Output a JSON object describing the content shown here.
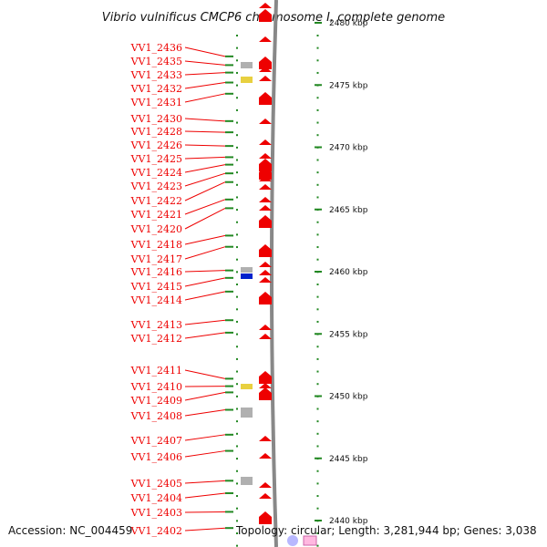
{
  "title": "Vibrio vulnificus CMCP6 chromosome I, complete genome",
  "accession_text": "Accession: NC_004459",
  "summary_text": "Topology: circular; Length: 3,281,944 bp; Genes: 3,038",
  "colors": {
    "gene_label": "#ee0000",
    "forward_gene": "#ee0000",
    "other_gene_gray": "#b0b0b0",
    "rna_yellow": "#e8d040",
    "blue_feature": "#0022cc",
    "tick_green": "#228822",
    "backbone": "#888888",
    "legend_blue": "#b8b8ff",
    "legend_pink": "#ffb8e0"
  },
  "scale": {
    "unit": "kbp",
    "ticks": [
      {
        "kbp": 2480,
        "label": "2480 kbp"
      },
      {
        "kbp": 2475,
        "label": "2475 kbp"
      },
      {
        "kbp": 2470,
        "label": "2470 kbp"
      },
      {
        "kbp": 2465,
        "label": "2465 kbp"
      },
      {
        "kbp": 2460,
        "label": "2460 kbp"
      },
      {
        "kbp": 2455,
        "label": "2455 kbp"
      },
      {
        "kbp": 2450,
        "label": "2450 kbp"
      },
      {
        "kbp": 2445,
        "label": "2445 kbp"
      },
      {
        "kbp": 2440,
        "label": "2440 kbp"
      }
    ]
  },
  "genes": [
    {
      "label": "VV1_2436",
      "kbp": 2477.3
    },
    {
      "label": "VV1_2435",
      "kbp": 2476.6
    },
    {
      "label": "VV1_2433",
      "kbp": 2476.0
    },
    {
      "label": "VV1_2432",
      "kbp": 2475.2
    },
    {
      "label": "VV1_2431",
      "kbp": 2474.3
    },
    {
      "label": "VV1_2430",
      "kbp": 2472.1
    },
    {
      "label": "VV1_2428",
      "kbp": 2471.2
    },
    {
      "label": "VV1_2426",
      "kbp": 2470.1
    },
    {
      "label": "VV1_2425",
      "kbp": 2469.2
    },
    {
      "label": "VV1_2424",
      "kbp": 2468.6
    },
    {
      "label": "VV1_2423",
      "kbp": 2467.9
    },
    {
      "label": "VV1_2422",
      "kbp": 2467.2
    },
    {
      "label": "VV1_2421",
      "kbp": 2465.8
    },
    {
      "label": "VV1_2420",
      "kbp": 2465.1
    },
    {
      "label": "VV1_2418",
      "kbp": 2462.9
    },
    {
      "label": "VV1_2417",
      "kbp": 2462.0
    },
    {
      "label": "VV1_2416",
      "kbp": 2460.1
    },
    {
      "label": "VV1_2415",
      "kbp": 2459.5
    },
    {
      "label": "VV1_2414",
      "kbp": 2458.4
    },
    {
      "label": "VV1_2413",
      "kbp": 2456.1
    },
    {
      "label": "VV1_2412",
      "kbp": 2455.1
    },
    {
      "label": "VV1_2411",
      "kbp": 2451.4
    },
    {
      "label": "VV1_2410",
      "kbp": 2450.8
    },
    {
      "label": "VV1_2409",
      "kbp": 2450.3
    },
    {
      "label": "VV1_2408",
      "kbp": 2448.9
    },
    {
      "label": "VV1_2407",
      "kbp": 2446.9
    },
    {
      "label": "VV1_2406",
      "kbp": 2445.6
    },
    {
      "label": "VV1_2405",
      "kbp": 2443.2
    },
    {
      "label": "VV1_2404",
      "kbp": 2442.2
    },
    {
      "label": "VV1_2403",
      "kbp": 2440.7
    },
    {
      "label": "VV1_2402",
      "kbp": 2439.4
    }
  ]
}
